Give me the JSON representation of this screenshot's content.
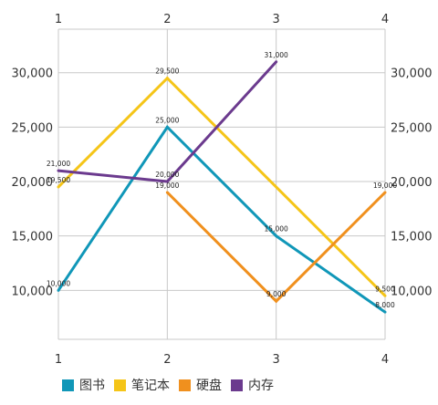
{
  "chart_data": {
    "type": "line",
    "categories": [
      "1",
      "2",
      "3",
      "4"
    ],
    "ylim": [
      5500,
      34000
    ],
    "y_ticks": [
      "10,000",
      "15,000",
      "20,000",
      "25,000",
      "30,000"
    ],
    "y_tick_values": [
      10000,
      15000,
      20000,
      25000,
      30000
    ],
    "grid": true,
    "legend_position": "bottom-left",
    "series": [
      {
        "name": "图书",
        "color": "#1097b8",
        "values": [
          10000,
          25000,
          15000,
          8000
        ],
        "labels": [
          "10,000",
          "25,000",
          "15,000",
          "8,000"
        ]
      },
      {
        "name": "笔记本",
        "color": "#f5c518",
        "values": [
          19500,
          29500,
          null,
          9500
        ],
        "labels": [
          "19,500",
          "29,500",
          "",
          "9,500"
        ]
      },
      {
        "name": "硬盘",
        "color": "#f0901e",
        "values": [
          null,
          19000,
          9000,
          19000
        ],
        "labels": [
          "",
          "19,000",
          "9,000",
          "19,000"
        ]
      },
      {
        "name": "内存",
        "color": "#6b3a8e",
        "values": [
          21000,
          20000,
          31000,
          null
        ],
        "labels": [
          "21,000",
          "20,000",
          "31,000",
          ""
        ]
      }
    ]
  }
}
